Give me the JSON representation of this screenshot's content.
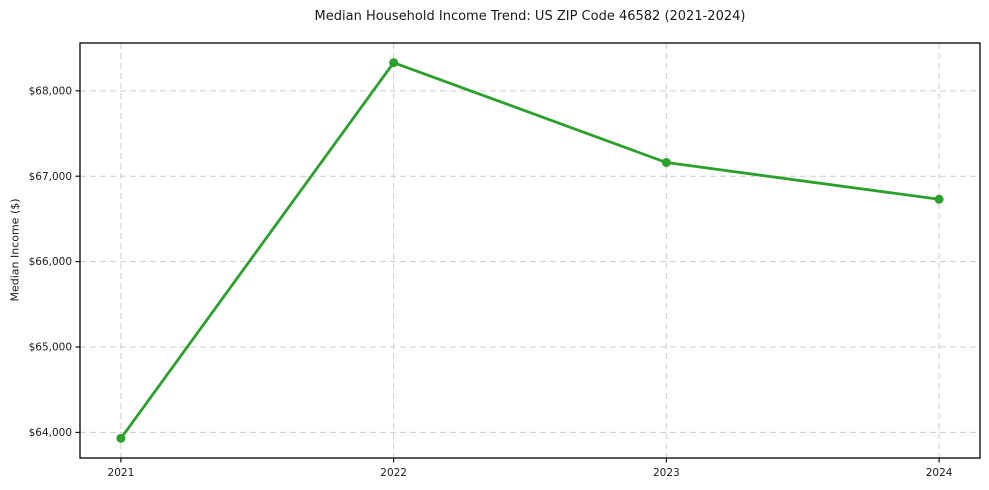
{
  "figure": {
    "title": "Median Household Income Trend: US ZIP Code 46582 (2021-2024)"
  },
  "chart_data": {
    "type": "line",
    "title": "Median Household Income Trend: US ZIP Code 46582 (2021-2024)",
    "xlabel": "",
    "ylabel": "Median Income ($)",
    "x": [
      2021,
      2022,
      2023,
      2024
    ],
    "x_tick_labels": [
      "2021",
      "2022",
      "2023",
      "2024"
    ],
    "values": [
      63930,
      68330,
      67160,
      66730
    ],
    "y_ticks": [
      64000,
      65000,
      66000,
      67000,
      68000
    ],
    "y_tick_labels": [
      "$64,000",
      "$65,000",
      "$66,000",
      "$67,000",
      "$68,000"
    ],
    "xlim": [
      2020.85,
      2024.15
    ],
    "ylim": [
      63700,
      68560
    ],
    "grid": true,
    "grid_style": "dashed",
    "legend_position": "none",
    "style": {
      "line_color": "#2ca02c",
      "marker_color": "#2ca02c",
      "marker_shape": "circle",
      "grid_color": "#cccccc",
      "spine_color": "#000000",
      "text_color": "#1a1a1a",
      "background_color": "#ffffff"
    }
  }
}
